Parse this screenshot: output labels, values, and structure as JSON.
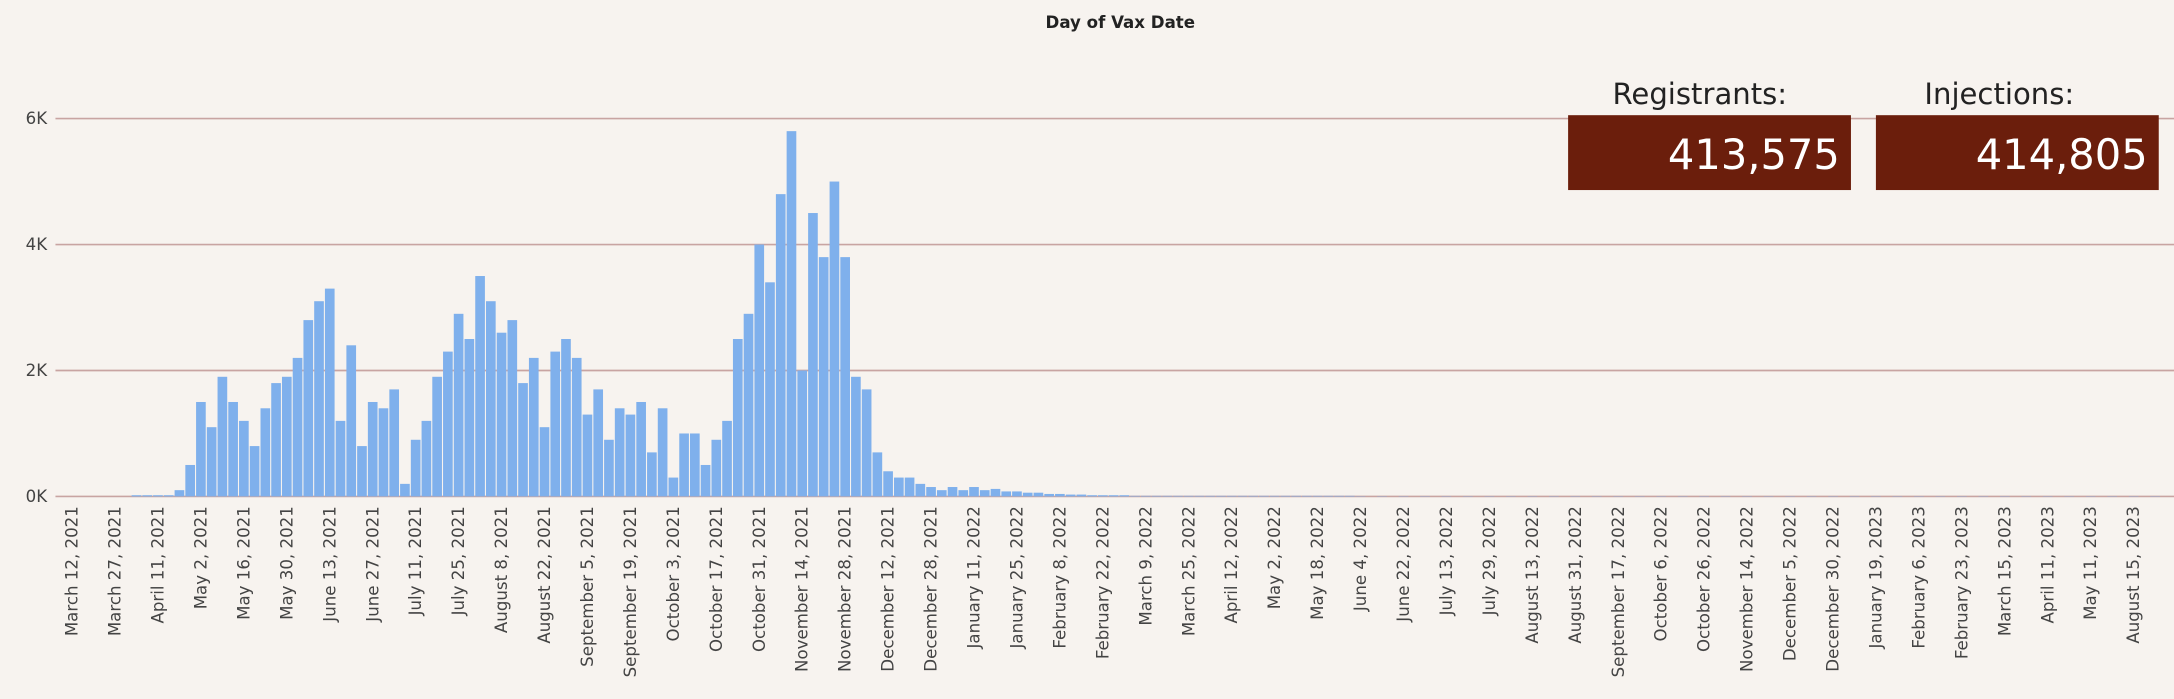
{
  "chart_data": {
    "type": "bar",
    "title": "Day of Vax Date",
    "color": "#7fb0ec",
    "grid": true,
    "ylim": [
      0,
      7000
    ],
    "yticks": [
      {
        "value": 0,
        "label": "0K"
      },
      {
        "value": 2000,
        "label": "2K"
      },
      {
        "value": 4000,
        "label": "4K"
      },
      {
        "value": 6000,
        "label": "6K"
      }
    ],
    "categories": [
      "March 12, 2021",
      null,
      null,
      null,
      "March 27, 2021",
      null,
      null,
      null,
      "April 11, 2021",
      null,
      null,
      null,
      "May 2, 2021",
      null,
      null,
      null,
      "May 16, 2021",
      null,
      null,
      null,
      "May 30, 2021",
      null,
      null,
      null,
      "June 13, 2021",
      null,
      null,
      null,
      "June 27, 2021",
      null,
      null,
      null,
      "July 11, 2021",
      null,
      null,
      null,
      "July 25, 2021",
      null,
      null,
      null,
      "August 8, 2021",
      null,
      null,
      null,
      "August 22, 2021",
      null,
      null,
      null,
      "September 5, 2021",
      null,
      null,
      null,
      "September 19, 2021",
      null,
      null,
      null,
      "October 3, 2021",
      null,
      null,
      null,
      "October 17, 2021",
      null,
      null,
      null,
      "October 31, 2021",
      null,
      null,
      null,
      "November 14, 2021",
      null,
      null,
      null,
      "November 28, 2021",
      null,
      null,
      null,
      "December 12, 2021",
      null,
      null,
      null,
      "December 28, 2021",
      null,
      null,
      null,
      "January 11, 2022",
      null,
      null,
      null,
      "January 25, 2022",
      null,
      null,
      null,
      "February 8, 2022",
      null,
      null,
      null,
      "February 22, 2022",
      null,
      null,
      null,
      "March 9, 2022",
      null,
      null,
      null,
      "March 25, 2022",
      null,
      null,
      null,
      "April 12, 2022",
      null,
      null,
      null,
      "May 2, 2022",
      null,
      null,
      null,
      "May 18, 2022",
      null,
      null,
      null,
      "June 4, 2022",
      null,
      null,
      null,
      "June 22, 2022",
      null,
      null,
      null,
      "July 13, 2022",
      null,
      null,
      null,
      "July 29, 2022",
      null,
      null,
      null,
      "August 13, 2022",
      null,
      null,
      null,
      "August 31, 2022",
      null,
      null,
      null,
      "September 17, 2022",
      null,
      null,
      null,
      "October 6, 2022",
      null,
      null,
      null,
      "October 26, 2022",
      null,
      null,
      null,
      "November 14, 2022",
      null,
      null,
      null,
      "December 5, 2022",
      null,
      null,
      null,
      "December 30, 2022",
      null,
      null,
      null,
      "January 19, 2023",
      null,
      null,
      null,
      "February 6, 2023",
      null,
      null,
      null,
      "February 23, 2023",
      null,
      null,
      null,
      "March 15, 2023",
      null,
      null,
      null,
      "April 11, 2023",
      null,
      null,
      null,
      "May 11, 2023",
      null,
      null,
      null,
      "August 15, 2023",
      null,
      null,
      null
    ],
    "values": [
      0,
      0,
      0,
      0,
      0,
      0,
      20,
      20,
      20,
      20,
      100,
      500,
      1500,
      1100,
      1900,
      1500,
      1200,
      800,
      1400,
      1800,
      1900,
      2200,
      2800,
      3100,
      3300,
      1200,
      2400,
      800,
      1500,
      1400,
      1700,
      200,
      900,
      1200,
      1900,
      2300,
      2900,
      2500,
      3500,
      3100,
      2600,
      2800,
      1800,
      2200,
      1100,
      2300,
      2500,
      2200,
      1300,
      1700,
      900,
      1400,
      1300,
      1500,
      700,
      1400,
      300,
      1000,
      1000,
      500,
      900,
      1200,
      2500,
      2900,
      4000,
      3400,
      4800,
      5800,
      2000,
      4500,
      3800,
      5000,
      3800,
      1900,
      1700,
      700,
      400,
      300,
      300,
      200,
      150,
      100,
      150,
      100,
      150,
      100,
      120,
      80,
      80,
      60,
      60,
      40,
      40,
      30,
      30,
      20,
      20,
      20,
      20,
      10,
      10,
      10,
      10,
      10,
      10,
      10,
      10,
      10,
      10,
      10,
      10,
      10,
      10,
      10,
      10,
      10,
      10,
      10,
      10,
      10,
      5,
      0,
      5,
      0,
      5,
      0,
      5,
      0,
      5,
      0,
      5,
      0,
      5,
      0,
      5,
      0,
      5,
      0,
      5,
      0,
      5,
      0,
      5,
      0,
      5,
      0,
      5,
      0,
      5,
      0,
      5,
      0,
      5,
      0,
      5,
      0,
      5,
      0,
      5,
      0,
      5,
      0,
      5,
      0,
      5,
      0,
      5,
      0,
      5,
      0,
      5,
      0,
      5,
      0,
      5,
      0,
      5,
      0,
      5,
      0,
      5,
      0,
      5,
      0,
      5,
      0,
      5,
      0,
      5,
      0,
      5,
      0,
      5,
      0,
      5,
      0
    ]
  },
  "kpis": [
    {
      "label": "Registrants:",
      "value": "413,575"
    },
    {
      "label": "Injections:",
      "value": "414,805"
    }
  ]
}
